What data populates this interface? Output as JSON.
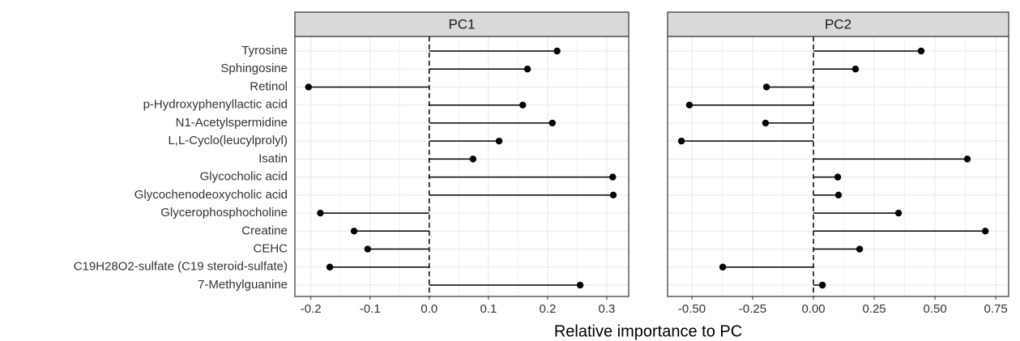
{
  "chart_data": {
    "type": "lollipop",
    "x_label": "Relative importance to PC",
    "color": "#000000",
    "grid": true,
    "categories": [
      "Tyrosine",
      "Sphingosine",
      "Retinol",
      "p-Hydroxyphenyllactic acid",
      "N1-Acetylspermidine",
      "L,L-Cyclo(leucylprolyl)",
      "Isatin",
      "Glycocholic acid",
      "Glycochenodeoxycholic acid",
      "Glycerophosphocholine",
      "Creatine",
      "CEHC",
      "C19H28O2-sulfate (C19 steroid-sulfate)",
      "7-Methylguanine"
    ],
    "panels": [
      {
        "title": "PC1",
        "values": [
          0.216,
          0.166,
          -0.204,
          0.158,
          0.208,
          0.118,
          0.074,
          0.31,
          0.311,
          -0.184,
          -0.127,
          -0.104,
          -0.168,
          0.255
        ],
        "xlim": [
          -0.227,
          0.337
        ],
        "xticks": [
          -0.2,
          -0.1,
          {
            "value": 0,
            "label": "0.0"
          },
          0.1,
          0.2,
          0.3
        ]
      },
      {
        "title": "PC2",
        "values": [
          0.443,
          0.173,
          -0.193,
          -0.51,
          -0.197,
          -0.543,
          0.633,
          0.1,
          0.103,
          0.35,
          0.707,
          0.19,
          -0.373,
          0.037
        ],
        "xlim": [
          -0.6,
          0.803
        ],
        "xticks": [
          {
            "value": -0.5,
            "label": "-0.50"
          },
          {
            "value": -0.25,
            "label": "-0.25"
          },
          {
            "value": 0,
            "label": "0.00"
          },
          {
            "value": 0.25,
            "label": "0.25"
          },
          {
            "value": 0.5,
            "label": "0.50"
          },
          {
            "value": 0.75,
            "label": "0.75"
          }
        ]
      }
    ]
  }
}
